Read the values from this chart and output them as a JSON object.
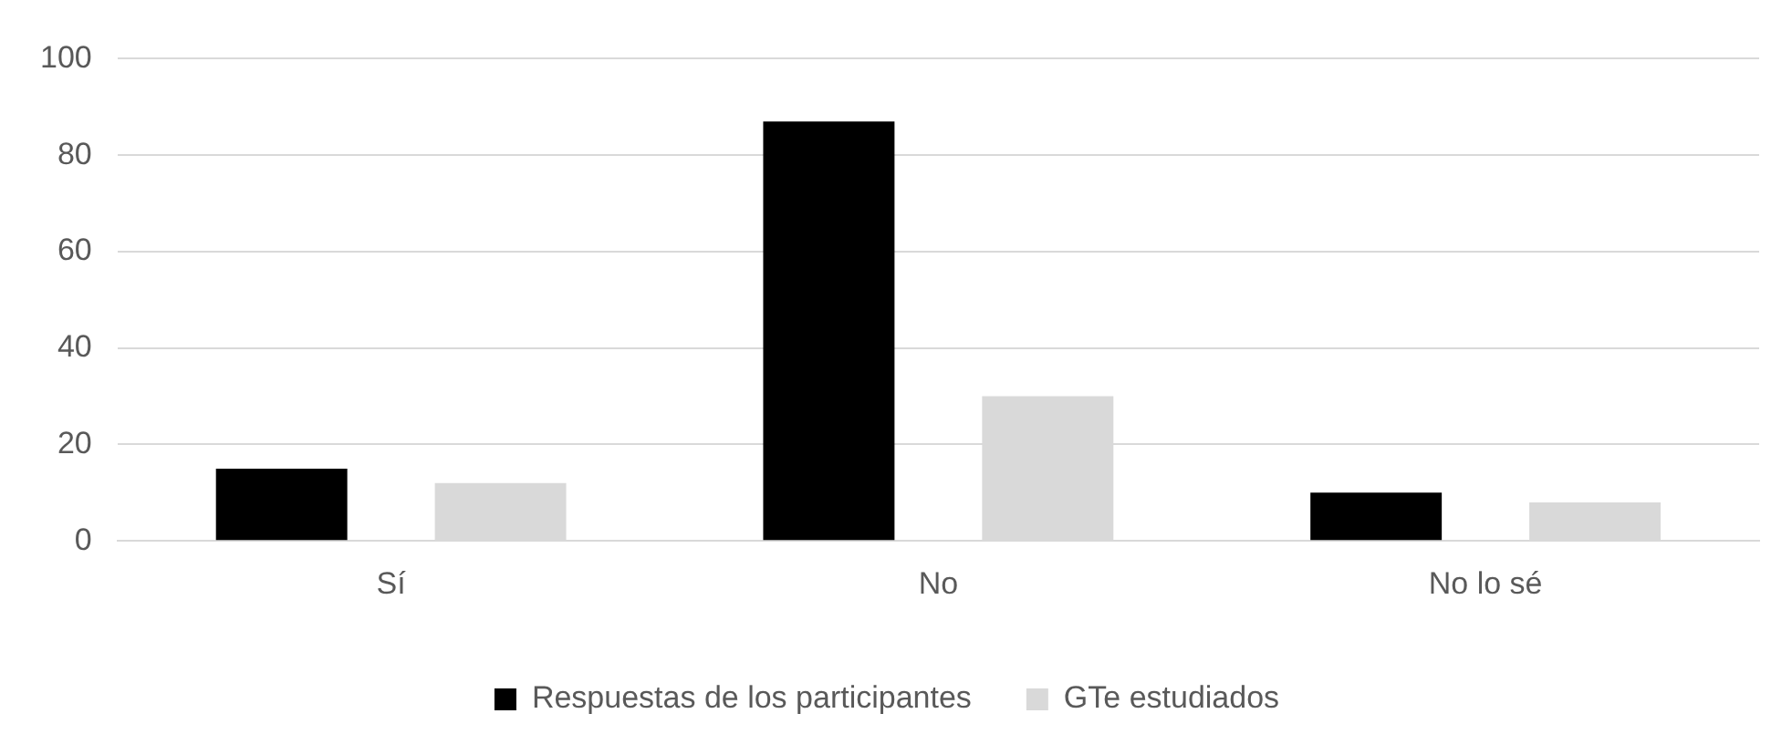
{
  "chart_data": {
    "type": "bar",
    "categories": [
      "Sí",
      "No",
      "No lo sé"
    ],
    "series": [
      {
        "name": "Respuestas de los participantes",
        "color": "#000000",
        "values": [
          15,
          87,
          10
        ]
      },
      {
        "name": "GTe estudiados",
        "color": "#d9d9d9",
        "values": [
          12,
          30,
          8
        ]
      }
    ],
    "ylim": [
      0,
      100
    ],
    "yticks": [
      0,
      20,
      40,
      60,
      80,
      100
    ],
    "grid": "y",
    "legend": "bottom"
  }
}
